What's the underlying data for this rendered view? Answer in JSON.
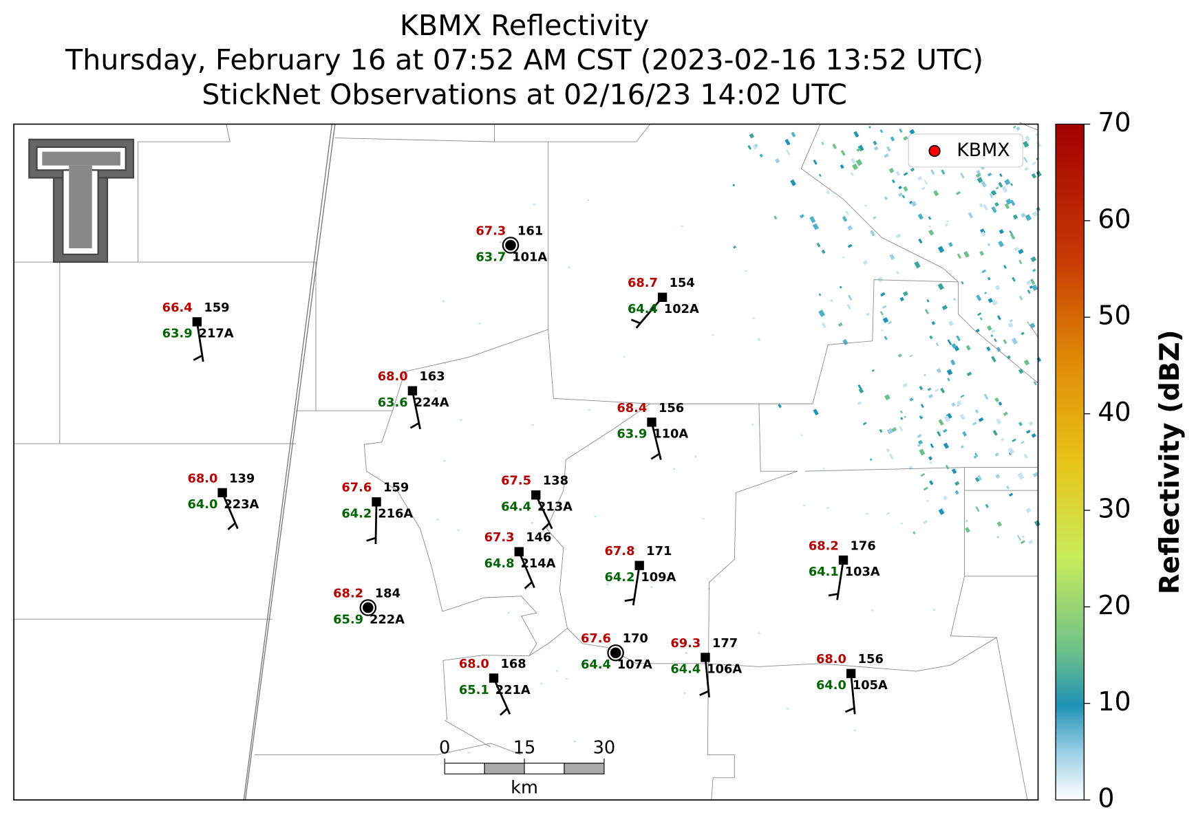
{
  "title": [
    "KBMX Reflectivity",
    "Thursday, February 16 at 07:52 AM CST (2023-02-16 13:52 UTC)",
    "StickNet Observations at 02/16/23 14:02 UTC"
  ],
  "legend": "KBMX",
  "colorbar": {
    "label": "Reflectivity (dBZ)",
    "ticks": [
      0,
      10,
      20,
      30,
      40,
      50,
      60,
      70
    ],
    "lim": [
      0,
      70
    ]
  },
  "scale_bar": {
    "ticks": [
      0,
      15,
      30
    ],
    "unit": "km"
  },
  "stations": [
    {
      "id": "101A",
      "temperature": "67.3",
      "dewpoint": "63.7",
      "pressure": 161
    },
    {
      "id": "102A",
      "temperature": "68.7",
      "dewpoint": "64.4",
      "pressure": 154
    },
    {
      "id": "217A",
      "temperature": "66.4",
      "dewpoint": "63.9",
      "pressure": 159
    },
    {
      "id": "224A",
      "temperature": "68.0",
      "dewpoint": "63.6",
      "pressure": 163
    },
    {
      "id": "110A",
      "temperature": "68.4",
      "dewpoint": "63.9",
      "pressure": 156
    },
    {
      "id": "223A",
      "temperature": "68.0",
      "dewpoint": "64.0",
      "pressure": 139
    },
    {
      "id": "216A",
      "temperature": "67.6",
      "dewpoint": "64.2",
      "pressure": 159
    },
    {
      "id": "213A",
      "temperature": "67.5",
      "dewpoint": "64.4",
      "pressure": 138
    },
    {
      "id": "214A",
      "temperature": "67.3",
      "dewpoint": "64.8",
      "pressure": 146
    },
    {
      "id": "109A",
      "temperature": "67.8",
      "dewpoint": "64.2",
      "pressure": 171
    },
    {
      "id": "103A",
      "temperature": "68.2",
      "dewpoint": "64.1",
      "pressure": 176
    },
    {
      "id": "222A",
      "temperature": "68.2",
      "dewpoint": "65.9",
      "pressure": 184
    },
    {
      "id": "107A",
      "temperature": "67.6",
      "dewpoint": "64.4",
      "pressure": 170
    },
    {
      "id": "106A",
      "temperature": "69.3",
      "dewpoint": "64.4",
      "pressure": 177
    },
    {
      "id": "105A",
      "temperature": "68.0",
      "dewpoint": "64.0",
      "pressure": 156
    },
    {
      "id": "221A",
      "temperature": "68.0",
      "dewpoint": "65.1",
      "pressure": 168
    }
  ]
}
